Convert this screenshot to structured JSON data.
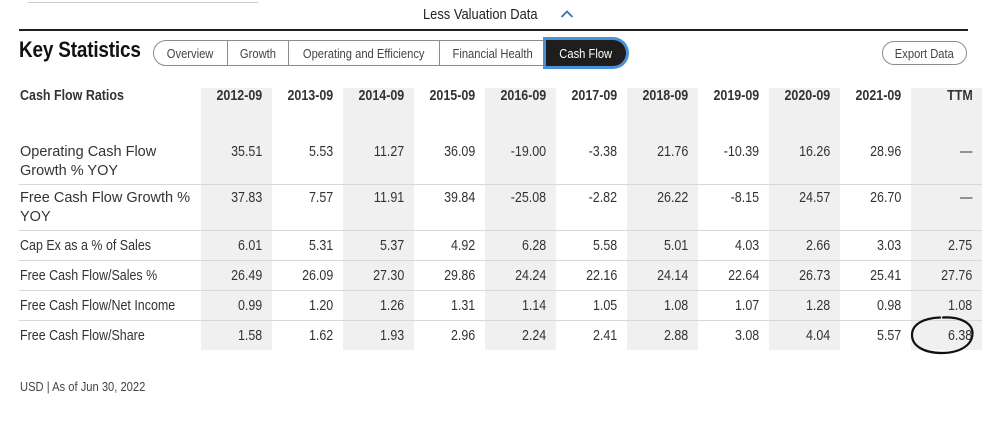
{
  "header": {
    "less_link": "Less Valuation Data",
    "section_title": "Key Statistics",
    "export_label": "Export Data"
  },
  "tabs": [
    {
      "label": "Overview",
      "active": false
    },
    {
      "label": "Growth",
      "active": false
    },
    {
      "label": "Operating and Efficiency",
      "active": false
    },
    {
      "label": "Financial Health",
      "active": false
    },
    {
      "label": "Cash Flow",
      "active": true
    }
  ],
  "table": {
    "title": "Cash Flow Ratios",
    "columns": [
      "2012-09",
      "2013-09",
      "2014-09",
      "2015-09",
      "2016-09",
      "2017-09",
      "2018-09",
      "2019-09",
      "2020-09",
      "2021-09",
      "TTM"
    ],
    "rows": [
      {
        "label": "Operating Cash Flow Growth % YOY",
        "values": [
          "35.51",
          "5.53",
          "11.27",
          "36.09",
          "-19.00",
          "-3.38",
          "21.76",
          "-10.39",
          "16.26",
          "28.96",
          "—"
        ]
      },
      {
        "label": "Free Cash Flow Growth % YOY",
        "values": [
          "37.83",
          "7.57",
          "11.91",
          "39.84",
          "-25.08",
          "-2.82",
          "26.22",
          "-8.15",
          "24.57",
          "26.70",
          "—"
        ]
      },
      {
        "label": "Cap Ex as a % of Sales",
        "values": [
          "6.01",
          "5.31",
          "5.37",
          "4.92",
          "6.28",
          "5.58",
          "5.01",
          "4.03",
          "2.66",
          "3.03",
          "2.75"
        ]
      },
      {
        "label": "Free Cash Flow/Sales %",
        "values": [
          "26.49",
          "26.09",
          "27.30",
          "29.86",
          "24.24",
          "22.16",
          "24.14",
          "22.64",
          "26.73",
          "25.41",
          "27.76"
        ]
      },
      {
        "label": "Free Cash Flow/Net Income",
        "values": [
          "0.99",
          "1.20",
          "1.26",
          "1.31",
          "1.14",
          "1.05",
          "1.08",
          "1.07",
          "1.28",
          "0.98",
          "1.08"
        ]
      },
      {
        "label": "Free Cash Flow/Share",
        "values": [
          "1.58",
          "1.62",
          "1.93",
          "2.96",
          "2.24",
          "2.41",
          "2.88",
          "3.08",
          "4.04",
          "5.57",
          "6.38"
        ]
      }
    ]
  },
  "footer": "USD | As of Jun 30, 2022",
  "colors": {
    "active_tab_bg": "#1e1e1e",
    "focus_ring": "#4a90d9",
    "shade": "#f0f0f0"
  },
  "icons": {
    "less_link": "chevron-up-icon",
    "annotation": "hand-drawn-circle"
  }
}
